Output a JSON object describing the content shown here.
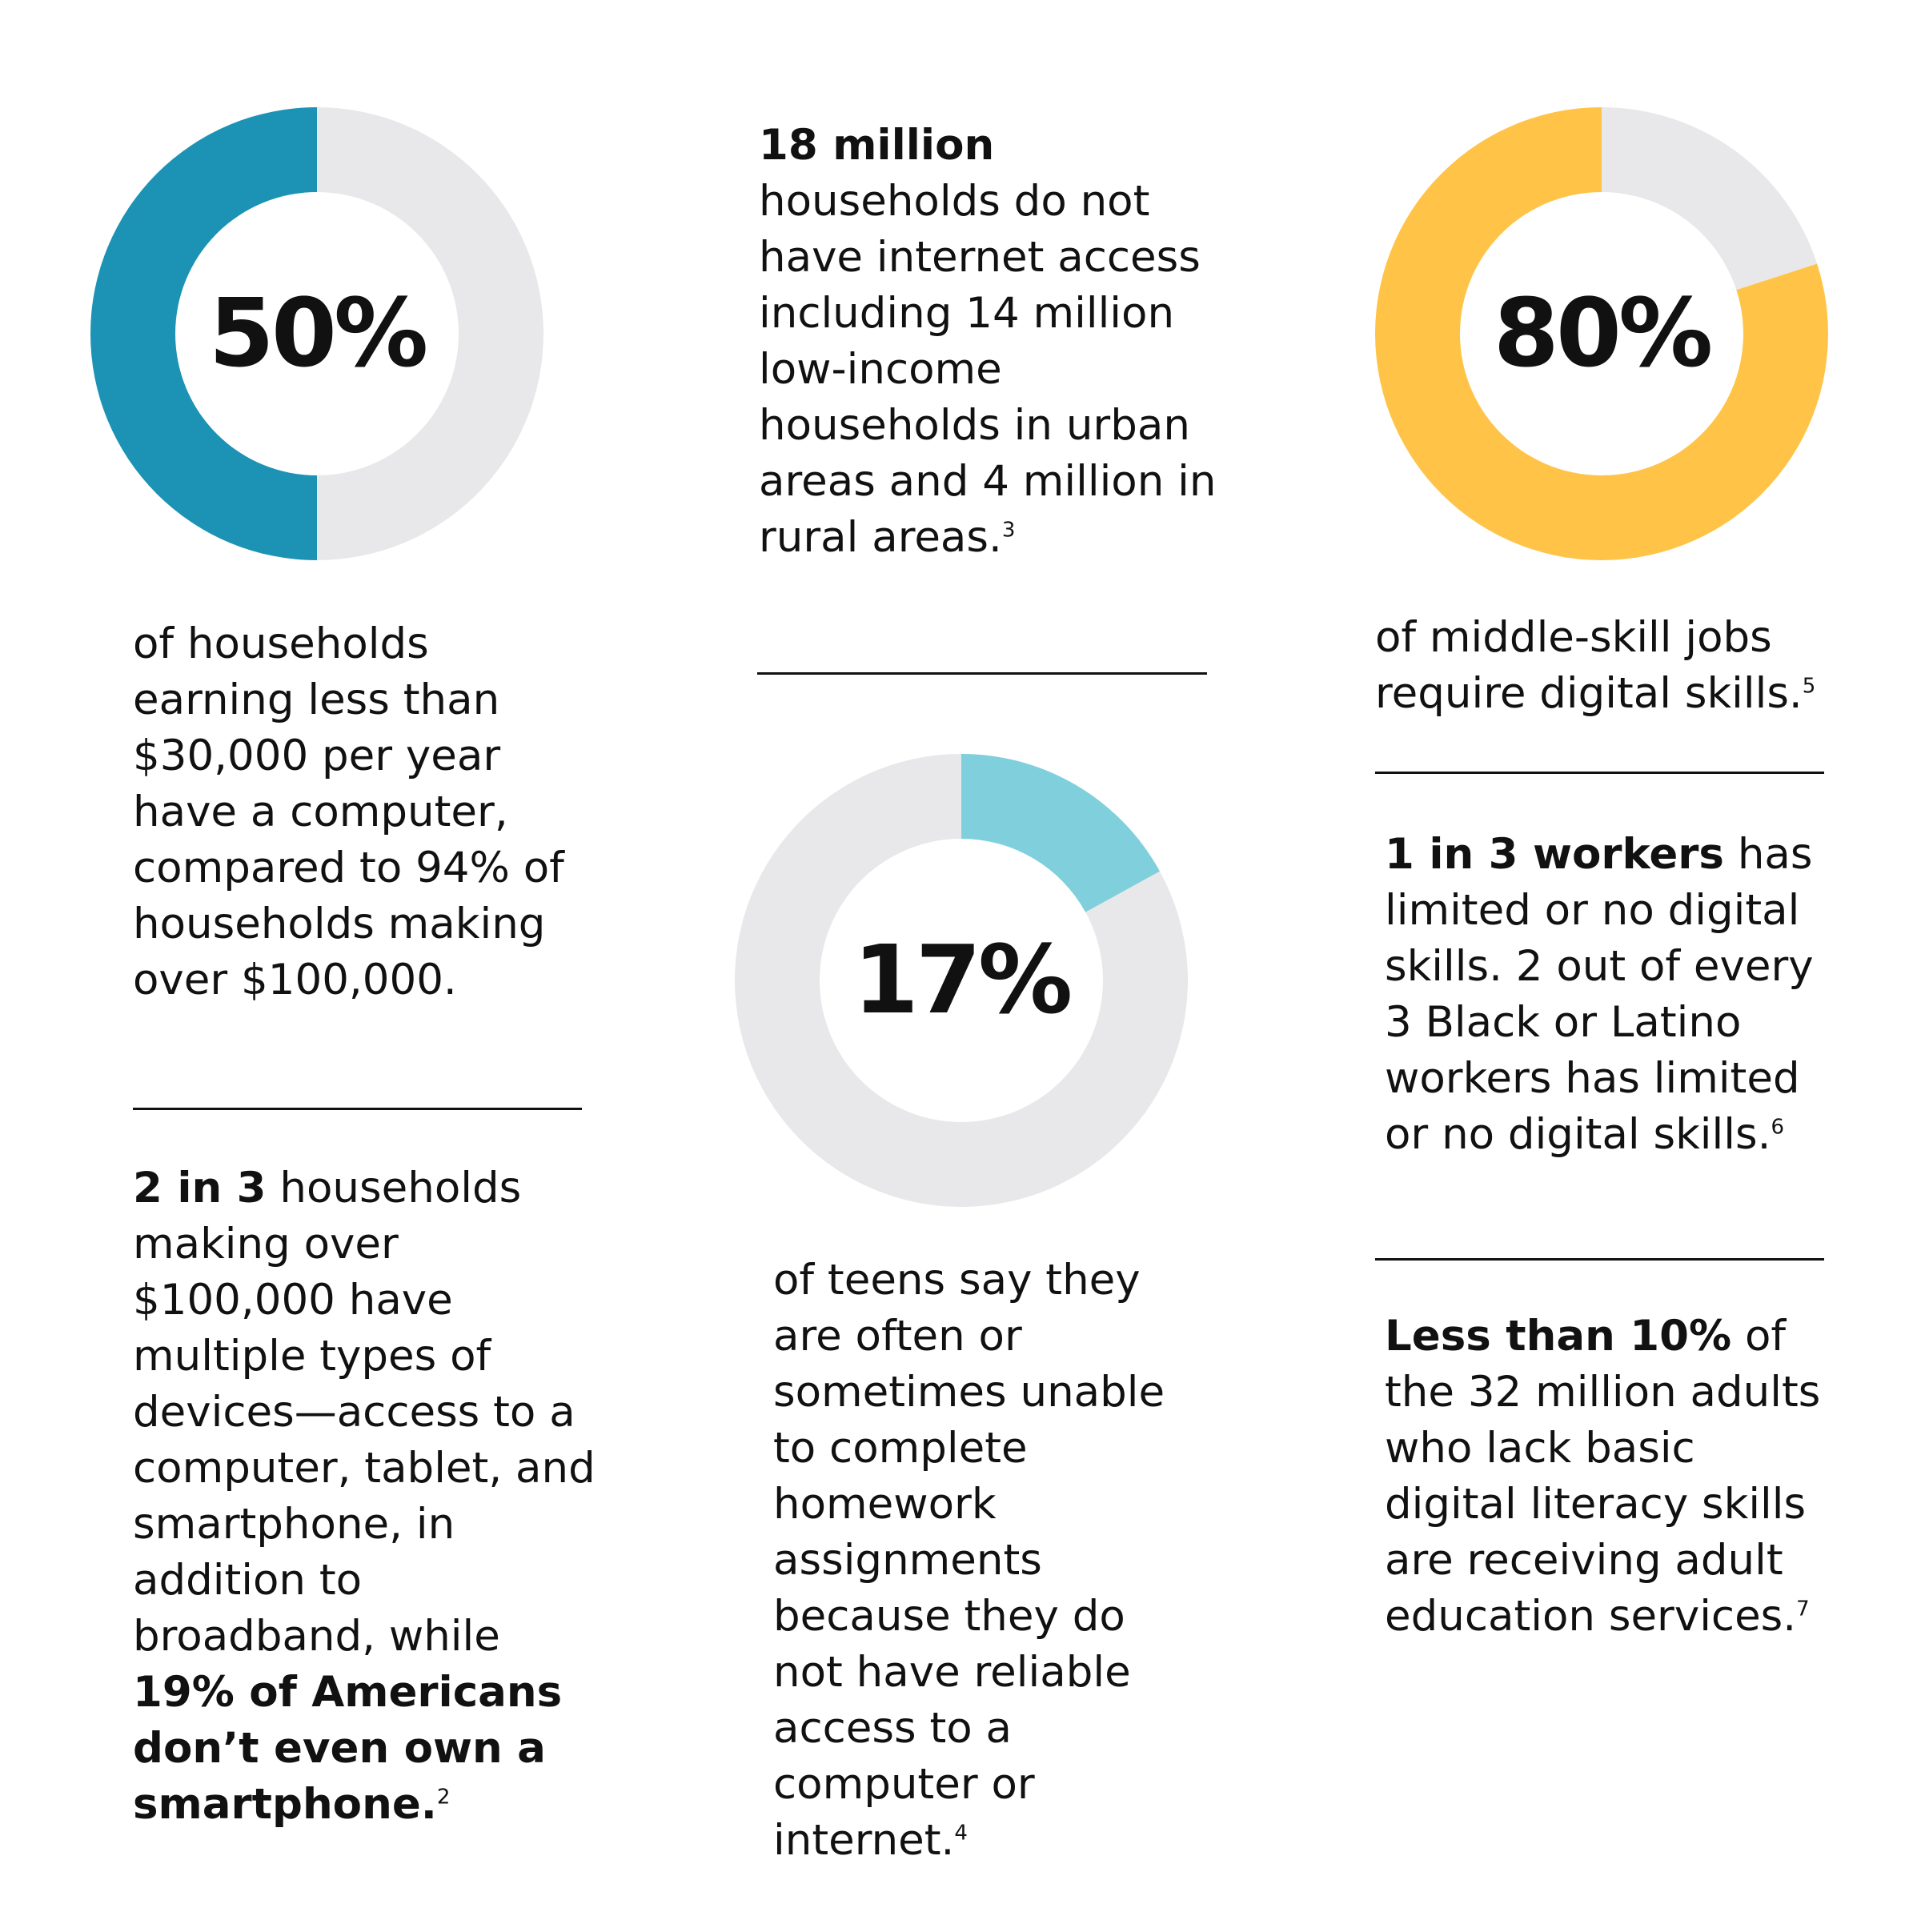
{
  "colors": {
    "track": "#E8E8EA",
    "teal": "#1C93B5",
    "light_blue": "#7FD0DC",
    "yellow": "#FFC447"
  },
  "chart_data": [
    {
      "type": "pie",
      "label": "50%",
      "values": [
        50,
        50
      ],
      "highlight_color": "#1C93B5",
      "track_color": "#E8E8EA"
    },
    {
      "type": "pie",
      "label": "17%",
      "values": [
        17,
        83
      ],
      "highlight_color": "#7FD0DC",
      "track_color": "#E8E8EA"
    },
    {
      "type": "pie",
      "label": "80%",
      "values": [
        80,
        20
      ],
      "highlight_color": "#FFC447",
      "track_color": "#E8E8EA"
    }
  ],
  "col1": {
    "stat_caption": "of households earning less than $30,000 per year have a computer, compared to 94% of households making over $100,000.",
    "devices": {
      "lead": "2 in 3",
      "text": " households making over $100,000 have multiple types of devices—access to a computer, tablet, and smartphone, in addition to broadband, while ",
      "bold_end": "19% of Americans don’t even own a smartphone.",
      "footnote": "2"
    }
  },
  "col2": {
    "households": {
      "lead": "18 million",
      "text": "households do not have internet access including 14 million low-income households in urban areas and 4 million in rural areas.",
      "footnote": "3"
    },
    "teens": {
      "text": "of teens say they are often or sometimes unable to complete homework assignments because they do not have reliable access to a computer or internet.",
      "footnote": "4"
    }
  },
  "col3": {
    "jobs": {
      "text": "of middle-skill jobs require digital skills.",
      "footnote": "5"
    },
    "workers": {
      "lead": "1 in 3 workers",
      "text": " has limited or no digital skills. 2 out of every 3 Black or Latino workers has limited or no digital skills.",
      "footnote": "6"
    },
    "adults": {
      "lead": "Less than 10%",
      "text": " of the 32 million adults who lack basic digital literacy skills are receiving adult education services.",
      "footnote": "7"
    }
  }
}
